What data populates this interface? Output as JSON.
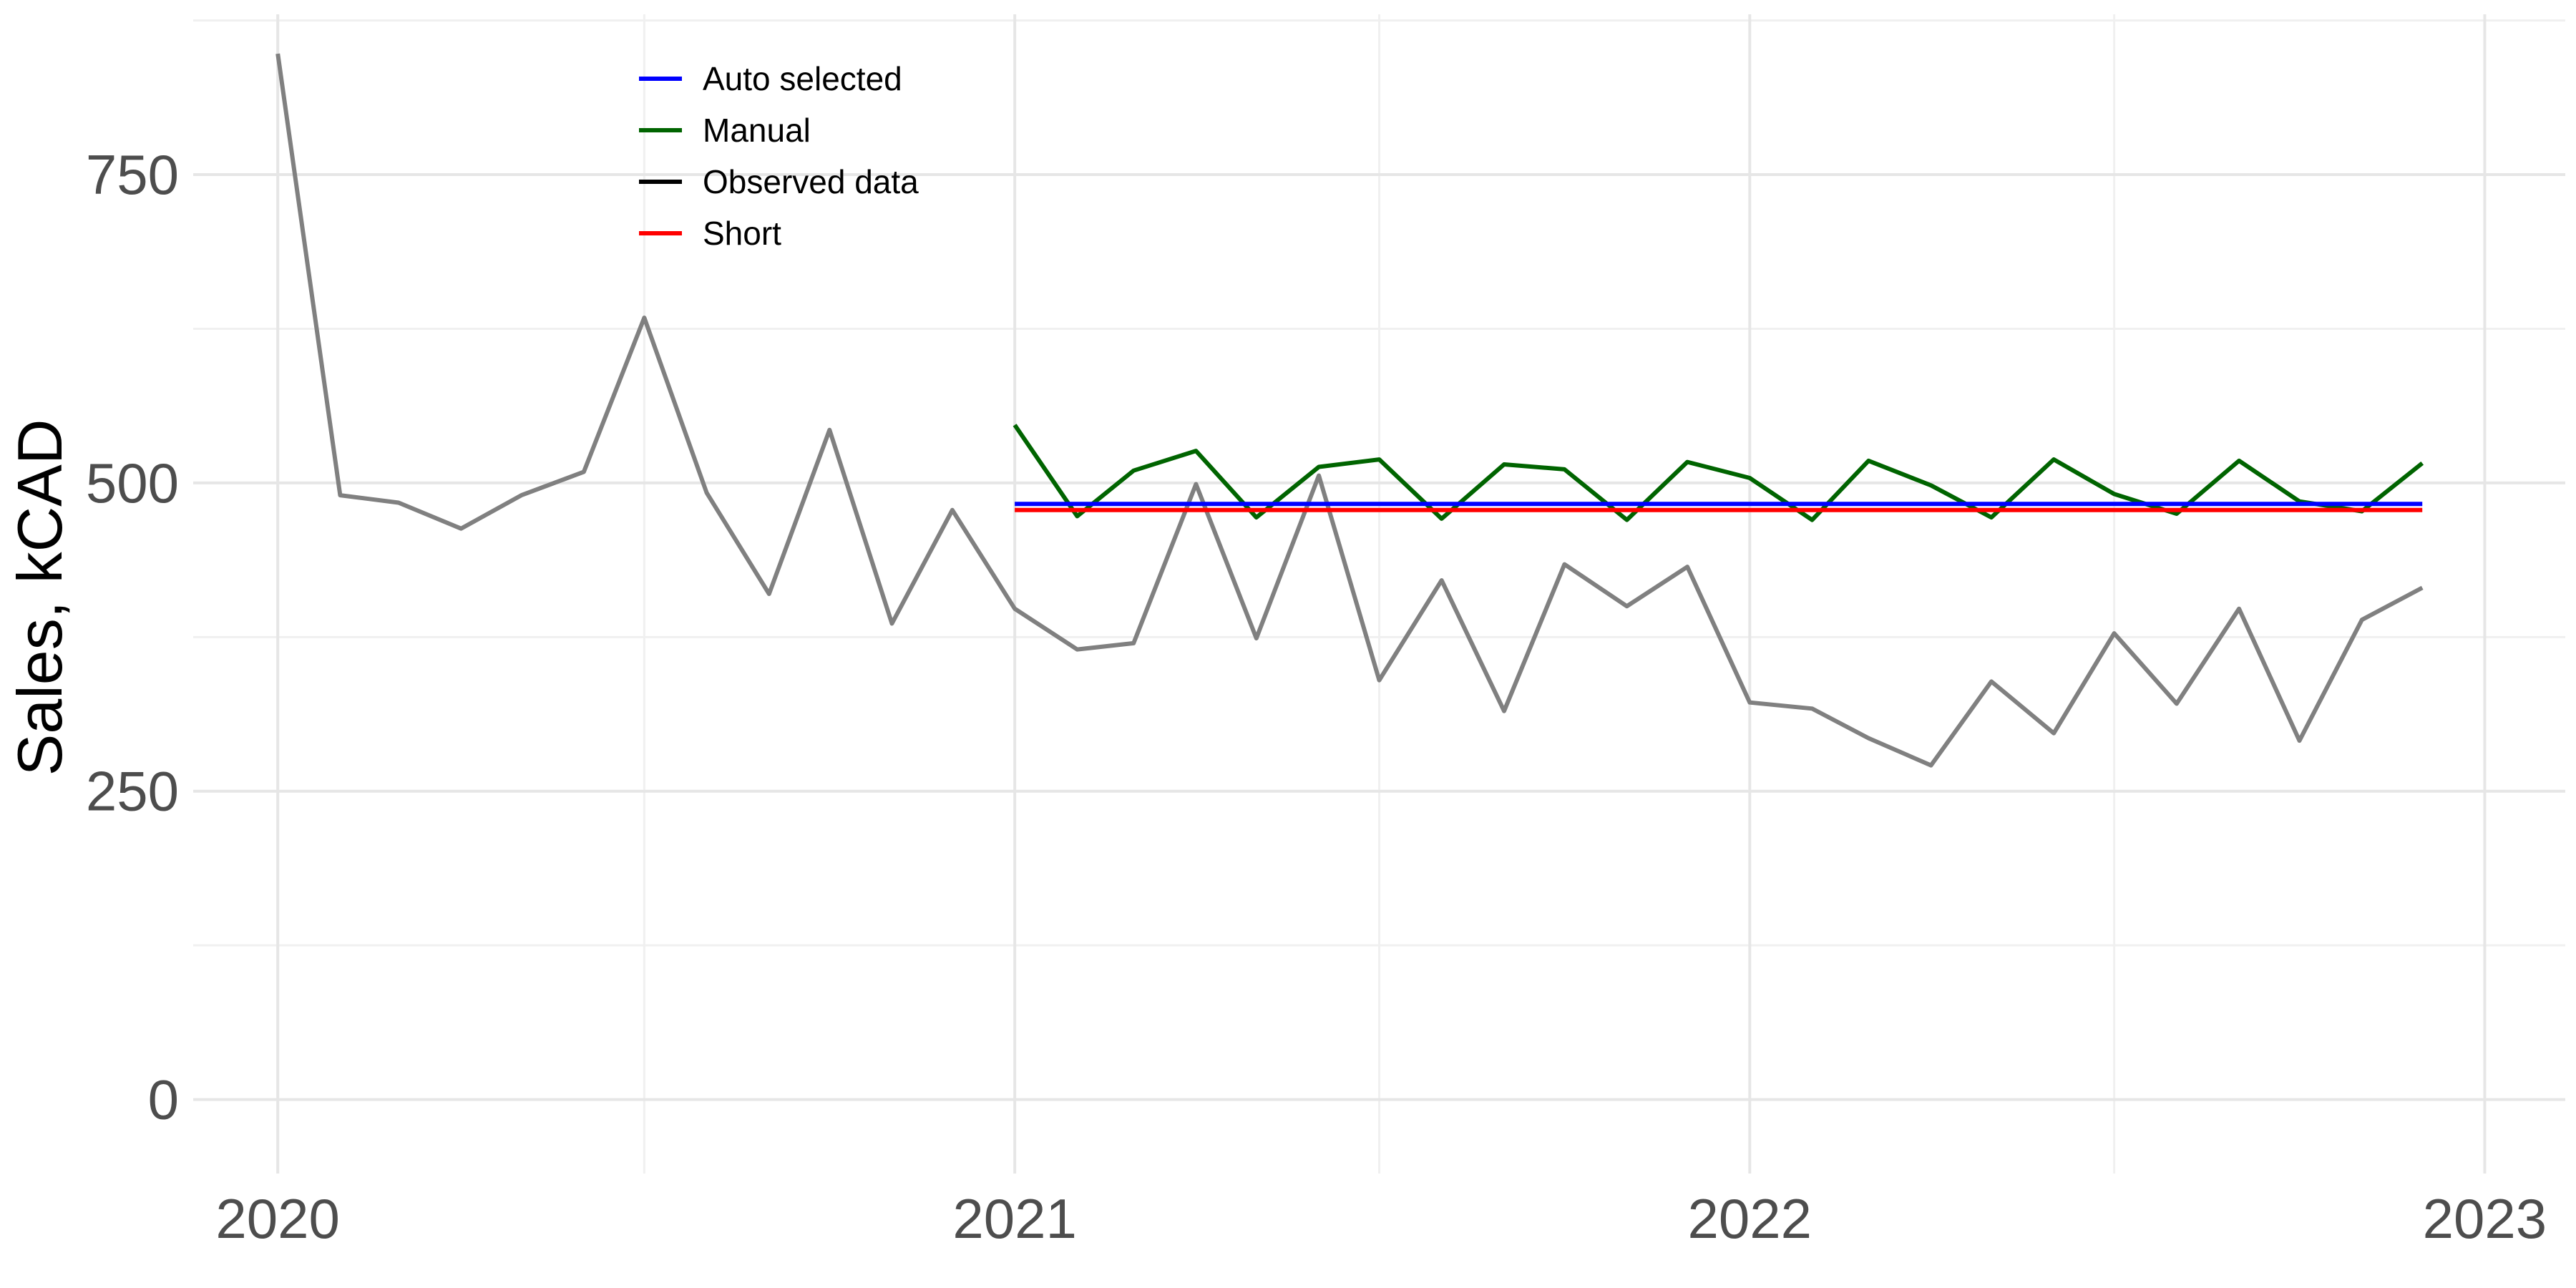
{
  "chart_data": {
    "type": "line",
    "title": "",
    "xlabel": "",
    "ylabel": "Sales, kCAD",
    "ylim": [
      -60,
      880
    ],
    "xlim": [
      "2019-11-20",
      "2023-02-10"
    ],
    "y_major_ticks": [
      0,
      250,
      500,
      750
    ],
    "y_minor_ticks": [
      125,
      375,
      625,
      875
    ],
    "x_major_ticks": [
      "2020-01-01",
      "2021-01-01",
      "2022-01-01",
      "2023-01-01"
    ],
    "x_major_labels": [
      "2020",
      "2021",
      "2022",
      "2023"
    ],
    "x_minor_ticks": [
      "2020-07-01",
      "2021-07-01",
      "2022-07-01"
    ],
    "grid": true,
    "legend_position": "top-left",
    "legend": [
      {
        "label": "Auto selected",
        "color": "#0000ff"
      },
      {
        "label": "Manual",
        "color": "#006400"
      },
      {
        "label": "Observed data",
        "color": "#000000"
      },
      {
        "label": "Short",
        "color": "#ff0000"
      }
    ],
    "series": [
      {
        "name": "Observed data",
        "color": "#808080",
        "x": [
          "2020-01",
          "2020-02",
          "2020-03",
          "2020-04",
          "2020-05",
          "2020-06",
          "2020-07",
          "2020-08",
          "2020-09",
          "2020-10",
          "2020-11",
          "2020-12",
          "2021-01",
          "2021-02",
          "2021-03",
          "2021-04",
          "2021-05",
          "2021-06",
          "2021-07",
          "2021-08",
          "2021-09",
          "2021-10",
          "2021-11",
          "2021-12",
          "2022-01",
          "2022-02",
          "2022-03",
          "2022-04",
          "2022-05",
          "2022-06",
          "2022-07",
          "2022-08",
          "2022-09",
          "2022-10",
          "2022-11",
          "2022-12"
        ],
        "values": [
          848,
          490,
          484,
          463,
          490,
          509,
          634,
          492,
          410,
          543,
          386,
          478,
          398,
          365,
          370,
          499,
          374,
          506,
          340,
          421,
          315,
          434,
          400,
          432,
          322,
          317,
          293,
          271,
          339,
          297,
          378,
          321,
          398,
          291,
          389,
          415
        ]
      },
      {
        "name": "Manual",
        "color": "#006400",
        "x": [
          "2021-01",
          "2021-02",
          "2021-03",
          "2021-04",
          "2021-05",
          "2021-06",
          "2021-07",
          "2021-08",
          "2021-09",
          "2021-10",
          "2021-11",
          "2021-12",
          "2022-01",
          "2022-02",
          "2022-03",
          "2022-04",
          "2022-05",
          "2022-06",
          "2022-07",
          "2022-08",
          "2022-09",
          "2022-10",
          "2022-11",
          "2022-12"
        ],
        "values": [
          547,
          473,
          510,
          526,
          472,
          513,
          519,
          471,
          515,
          511,
          470,
          517,
          504,
          470,
          518,
          498,
          472,
          519,
          491,
          475,
          518,
          485,
          477,
          516
        ]
      },
      {
        "name": "Auto selected",
        "color": "#0000ff",
        "x": [
          "2021-01",
          "2022-12"
        ],
        "values": [
          483,
          483
        ]
      },
      {
        "name": "Short",
        "color": "#ff0000",
        "x": [
          "2021-01",
          "2022-12"
        ],
        "values": [
          478,
          478
        ]
      }
    ]
  }
}
